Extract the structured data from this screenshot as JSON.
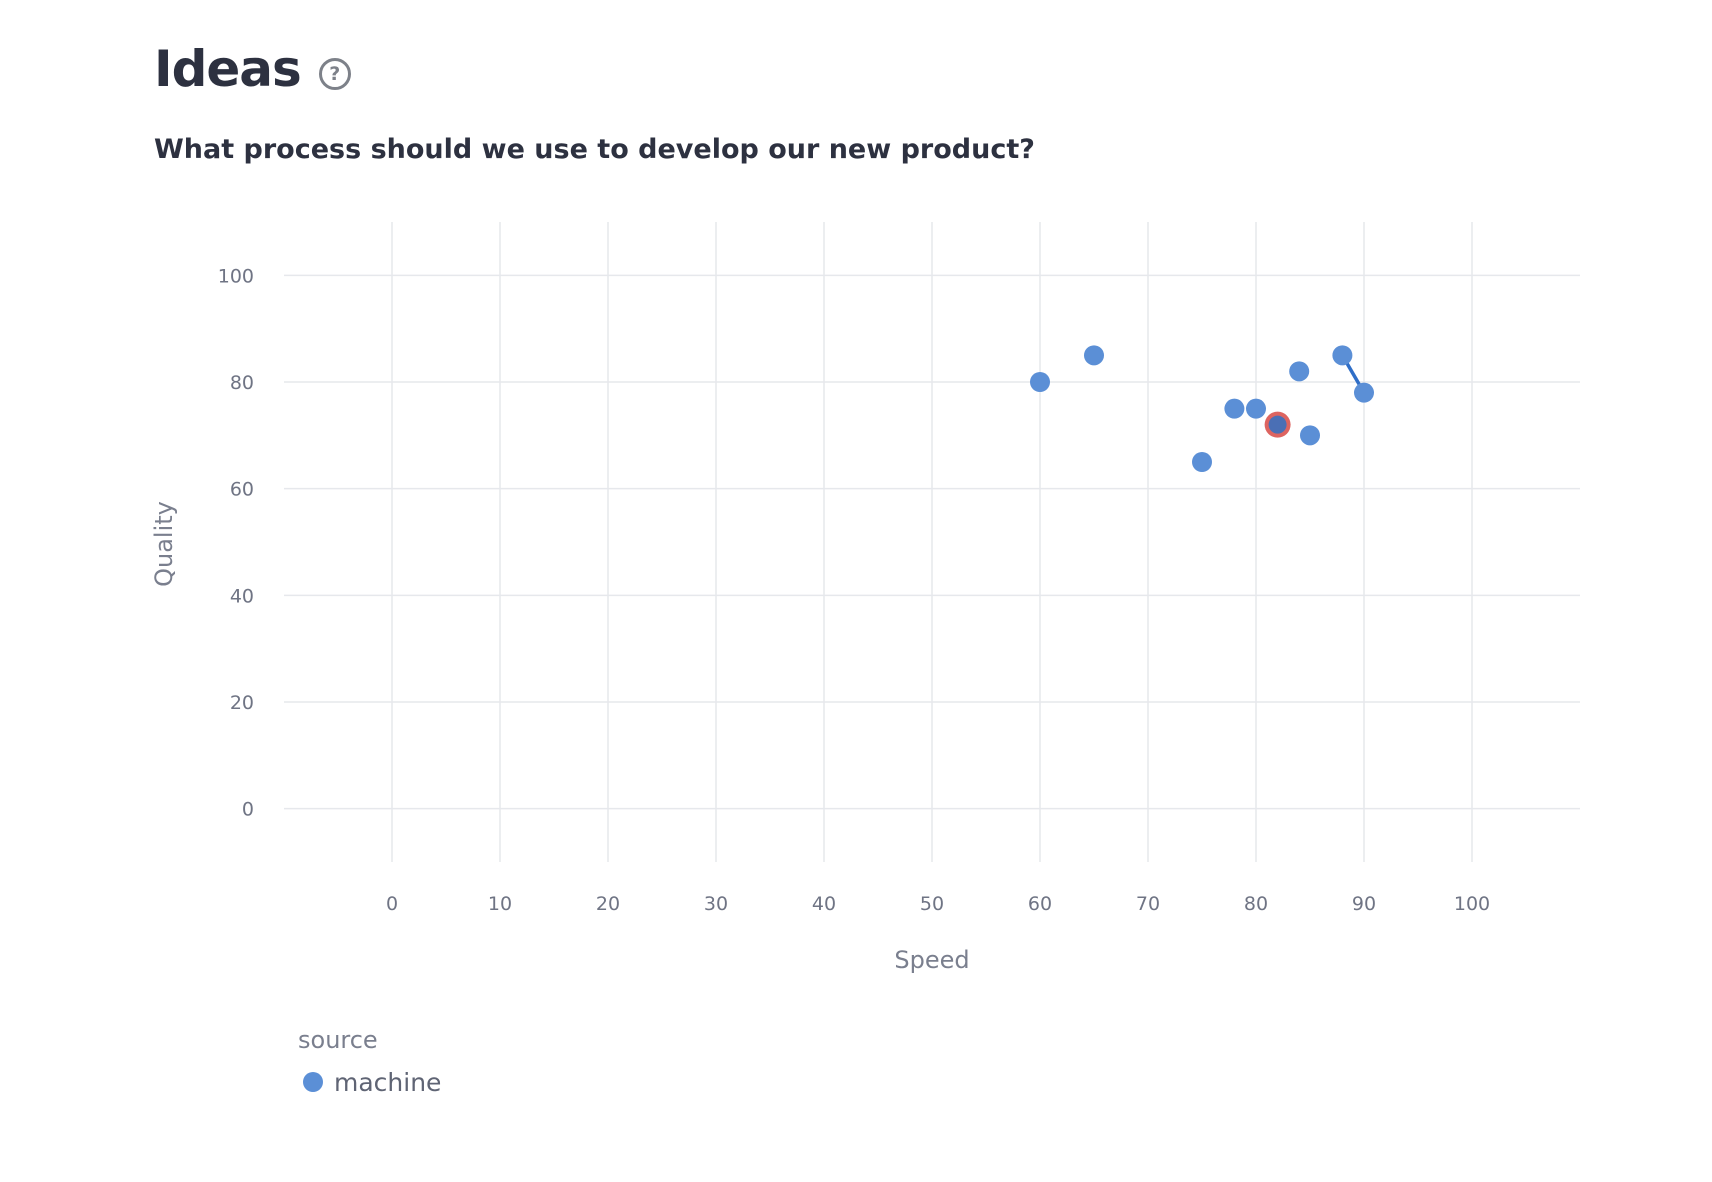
{
  "header": {
    "title": "Ideas",
    "help_icon": "help-circle-icon",
    "question": "What process should we use to develop our new product?"
  },
  "chart_data": {
    "type": "scatter",
    "xlabel": "Speed",
    "ylabel": "Quality",
    "xlim": [
      -10,
      110
    ],
    "ylim": [
      -10,
      110
    ],
    "xticks": [
      "0",
      "10",
      "20",
      "30",
      "40",
      "50",
      "60",
      "70",
      "80",
      "90",
      "100"
    ],
    "yticks": [
      "0",
      "20",
      "40",
      "60",
      "80",
      "100"
    ],
    "grid": true,
    "series": [
      {
        "name": "machine",
        "color": "#5b8fd6",
        "points": [
          {
            "x": 60,
            "y": 80
          },
          {
            "x": 65,
            "y": 85
          },
          {
            "x": 75,
            "y": 65
          },
          {
            "x": 78,
            "y": 75
          },
          {
            "x": 80,
            "y": 75
          },
          {
            "x": 82,
            "y": 72
          },
          {
            "x": 84,
            "y": 82
          },
          {
            "x": 85,
            "y": 70
          },
          {
            "x": 88,
            "y": 85
          },
          {
            "x": 90,
            "y": 78
          }
        ]
      }
    ],
    "highlighted_point": {
      "x": 82,
      "y": 72,
      "color": "#d9534f"
    },
    "connector": {
      "from": {
        "x": 88,
        "y": 85
      },
      "to": {
        "x": 90,
        "y": 78
      },
      "color": "#2f6ec7"
    },
    "legend": {
      "title": "source",
      "placement": "bottom-left",
      "entries": [
        "machine"
      ]
    }
  }
}
